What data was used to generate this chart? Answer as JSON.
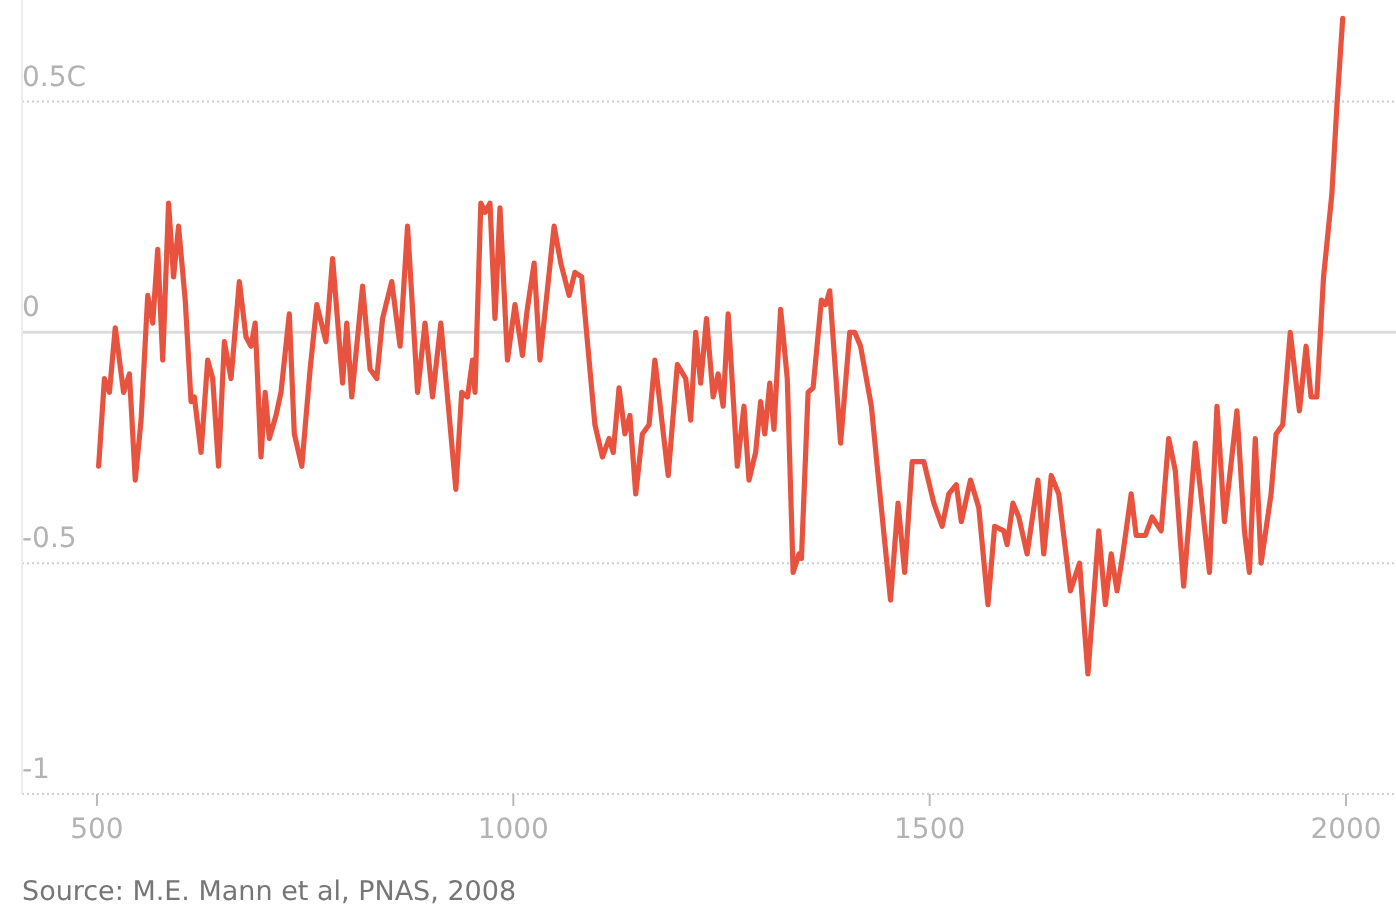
{
  "chart_data": {
    "type": "line",
    "x": [
      502,
      509,
      515,
      522,
      532,
      539,
      546,
      553,
      561,
      567,
      573,
      579,
      586,
      592,
      598,
      606,
      613,
      617,
      625,
      633,
      639,
      646,
      653,
      661,
      671,
      679,
      685,
      690,
      697,
      702,
      707,
      715,
      721,
      731,
      737,
      746,
      756,
      764,
      775,
      783,
      795,
      800,
      806,
      819,
      828,
      836,
      843,
      854,
      864,
      873,
      885,
      894,
      903,
      913,
      922,
      931,
      938,
      945,
      951,
      954,
      961,
      966,
      972,
      978,
      984,
      993,
      1002,
      1011,
      1016,
      1025,
      1032,
      1039,
      1049,
      1057,
      1067,
      1074,
      1082,
      1098,
      1107,
      1115,
      1120,
      1127,
      1134,
      1140,
      1147,
      1155,
      1163,
      1170,
      1186,
      1197,
      1207,
      1213,
      1219,
      1225,
      1232,
      1240,
      1246,
      1252,
      1258,
      1269,
      1277,
      1283,
      1291,
      1297,
      1302,
      1308,
      1313,
      1321,
      1329,
      1336,
      1343,
      1346,
      1354,
      1360,
      1370,
      1375,
      1380,
      1393,
      1404,
      1410,
      1417,
      1430,
      1437,
      1453,
      1462,
      1470,
      1479,
      1493,
      1505,
      1515,
      1523,
      1532,
      1538,
      1549,
      1559,
      1570,
      1578,
      1589,
      1593,
      1600,
      1607,
      1617,
      1630,
      1637,
      1646,
      1655,
      1669,
      1680,
      1690,
      1703,
      1711,
      1718,
      1725,
      1732,
      1742,
      1748,
      1759,
      1767,
      1778,
      1787,
      1795,
      1805,
      1819,
      1836,
      1845,
      1854,
      1861,
      1869,
      1878,
      1884,
      1891,
      1898,
      1910,
      1916,
      1924,
      1933,
      1944,
      1952,
      1958,
      1965,
      1973,
      1983,
      1989,
      1996
    ],
    "values": [
      -0.29,
      -0.1,
      -0.13,
      0.01,
      -0.13,
      -0.09,
      -0.32,
      -0.19,
      0.08,
      0.02,
      0.18,
      -0.06,
      0.28,
      0.12,
      0.23,
      0.07,
      -0.15,
      -0.14,
      -0.26,
      -0.06,
      -0.1,
      -0.29,
      -0.02,
      -0.1,
      0.11,
      -0.01,
      -0.03,
      0.02,
      -0.27,
      -0.13,
      -0.23,
      -0.18,
      -0.13,
      0.04,
      -0.22,
      -0.29,
      -0.08,
      0.06,
      -0.02,
      0.16,
      -0.11,
      0.02,
      -0.14,
      0.1,
      -0.08,
      -0.1,
      0.03,
      0.11,
      -0.03,
      0.23,
      -0.13,
      0.02,
      -0.14,
      0.02,
      -0.16,
      -0.34,
      -0.13,
      -0.14,
      -0.06,
      -0.13,
      0.28,
      0.26,
      0.28,
      0.03,
      0.27,
      -0.06,
      0.06,
      -0.05,
      0.04,
      0.15,
      -0.06,
      0.06,
      0.23,
      0.15,
      0.08,
      0.13,
      0.12,
      -0.2,
      -0.27,
      -0.23,
      -0.26,
      -0.12,
      -0.22,
      -0.18,
      -0.35,
      -0.22,
      -0.2,
      -0.06,
      -0.31,
      -0.07,
      -0.1,
      -0.19,
      0.0,
      -0.11,
      0.03,
      -0.14,
      -0.09,
      -0.16,
      0.04,
      -0.29,
      -0.16,
      -0.32,
      -0.26,
      -0.15,
      -0.22,
      -0.11,
      -0.21,
      0.05,
      -0.1,
      -0.52,
      -0.48,
      -0.49,
      -0.13,
      -0.12,
      0.07,
      0.06,
      0.09,
      -0.24,
      0.0,
      0.0,
      -0.03,
      -0.16,
      -0.29,
      -0.58,
      -0.37,
      -0.52,
      -0.28,
      -0.28,
      -0.37,
      -0.42,
      -0.35,
      -0.33,
      -0.41,
      -0.32,
      -0.38,
      -0.59,
      -0.42,
      -0.43,
      -0.46,
      -0.37,
      -0.4,
      -0.48,
      -0.32,
      -0.48,
      -0.31,
      -0.35,
      -0.56,
      -0.5,
      -0.74,
      -0.43,
      -0.59,
      -0.48,
      -0.56,
      -0.48,
      -0.35,
      -0.44,
      -0.44,
      -0.4,
      -0.43,
      -0.23,
      -0.3,
      -0.55,
      -0.24,
      -0.52,
      -0.16,
      -0.41,
      -0.3,
      -0.17,
      -0.43,
      -0.52,
      -0.23,
      -0.5,
      -0.35,
      -0.22,
      -0.2,
      0.0,
      -0.17,
      -0.03,
      -0.14,
      -0.14,
      0.12,
      0.3,
      0.49,
      0.68
    ],
    "color": "#e8533f",
    "xlim": [
      410,
      2060
    ],
    "ylim": [
      -1,
      0.72
    ],
    "xticks": [
      500,
      1000,
      1500,
      2000
    ],
    "yticks": [
      {
        "value": 0.5,
        "label": "0.5C"
      },
      0,
      -0.5,
      -1
    ],
    "grid": "y",
    "line_style": "solid",
    "marker": "none",
    "annotations": [
      "Source: M.E. Mann et al, PNAS, 2008"
    ]
  }
}
